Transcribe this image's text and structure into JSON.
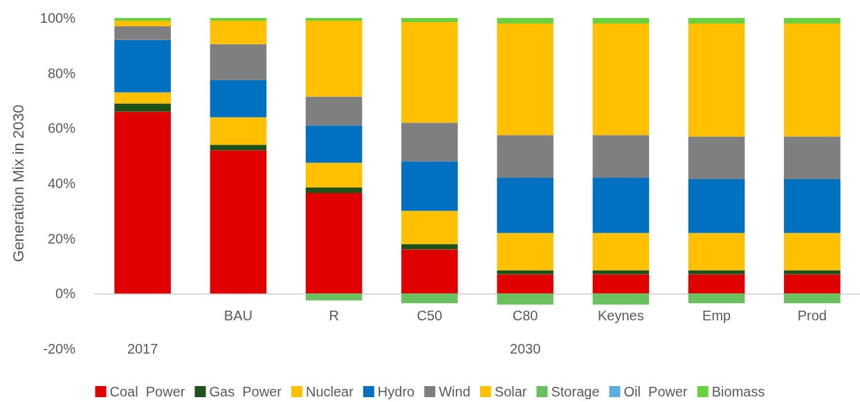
{
  "chart_data": {
    "type": "bar",
    "stacked": true,
    "ylabel": "Generation Mix in 2030",
    "categories": [
      null,
      "BAU",
      "R",
      "C50",
      "C80",
      "Keynes",
      "Emp",
      "Prod"
    ],
    "annotations": [
      "2017",
      "2030"
    ],
    "ylim": [
      -20,
      100
    ],
    "yticks": [
      {
        "value": -20,
        "label": "-20%"
      },
      {
        "value": 0,
        "label": "0%"
      },
      {
        "value": 20,
        "label": "20%"
      },
      {
        "value": 40,
        "label": "40%"
      },
      {
        "value": 60,
        "label": "60%"
      },
      {
        "value": 80,
        "label": "80%"
      },
      {
        "value": 100,
        "label": "100%"
      }
    ],
    "grid": false,
    "legend": "bottom",
    "series": [
      {
        "name": "Coal  Power",
        "color": "#e00000",
        "values": [
          66,
          52,
          36.5,
          16,
          7,
          7,
          7,
          7
        ]
      },
      {
        "name": "Gas  Power",
        "color": "#1e5218",
        "values": [
          3,
          2,
          2,
          2,
          1.5,
          1.5,
          1.5,
          1.5
        ]
      },
      {
        "name": "Nuclear",
        "color": "#ffc000",
        "values": [
          4,
          10,
          9,
          12,
          13.5,
          13.5,
          13.5,
          13.5
        ]
      },
      {
        "name": "Hydro",
        "color": "#0070c0",
        "values": [
          19,
          13.5,
          13.5,
          18,
          20,
          20,
          19.5,
          19.5
        ]
      },
      {
        "name": "Wind",
        "color": "#7f7f7f",
        "values": [
          5,
          13,
          10.5,
          14,
          15.5,
          15.5,
          15.5,
          15.5
        ]
      },
      {
        "name": "Solar",
        "color": "#ffc000",
        "values": [
          2,
          8.5,
          27.5,
          36.5,
          40.5,
          40.5,
          41,
          41
        ]
      },
      {
        "name": "Storage",
        "color": "#6abf5f",
        "values": [
          0,
          0,
          -2.5,
          -3.5,
          -4,
          -4,
          -3.5,
          -3.5
        ]
      },
      {
        "name": "Oil  Power",
        "color": "#5dade2",
        "values": [
          0,
          0,
          0,
          0,
          0,
          0,
          0,
          0
        ]
      },
      {
        "name": "Biomass",
        "color": "#6ad040",
        "values": [
          1,
          1,
          1,
          1.5,
          2,
          2,
          2,
          2
        ]
      }
    ]
  }
}
